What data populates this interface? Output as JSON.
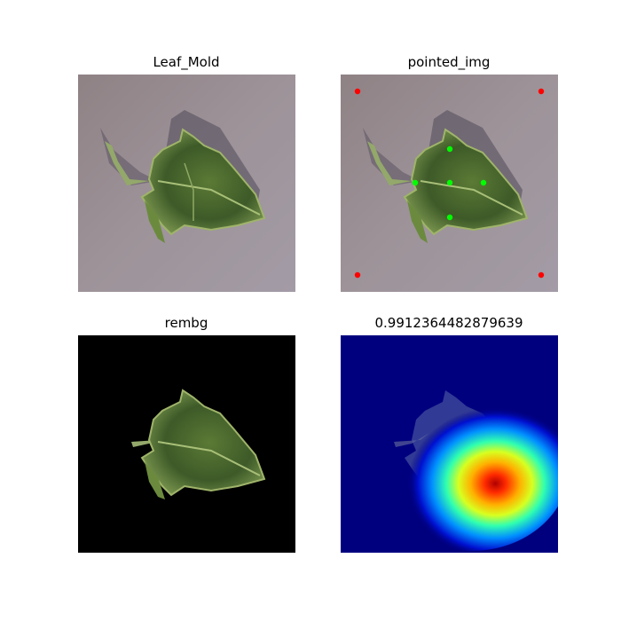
{
  "panels": [
    {
      "title": "Leaf_Mold"
    },
    {
      "title": "pointed_img"
    },
    {
      "title": "rembg"
    },
    {
      "title": "0.9912364482879639"
    }
  ],
  "colors": {
    "ground": "#9b8f95",
    "leaf_dark": "#3c5a2a",
    "leaf_light": "#7a9a4a",
    "red_point": "#ff0000",
    "green_point": "#00ff00",
    "heat_bg": "#00007f"
  }
}
